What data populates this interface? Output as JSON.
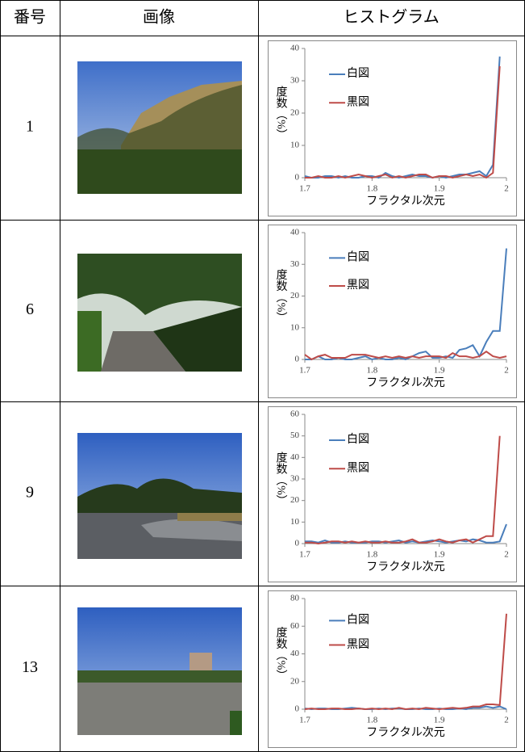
{
  "table": {
    "header": [
      "番号",
      "画像",
      "ヒストグラム"
    ],
    "rows": [
      {
        "number": 1,
        "chart": {
          "type": "line",
          "xlabel": "フラクタル次元",
          "ylabel": "度数（%）",
          "x": [
            1.7,
            1.71,
            1.72,
            1.73,
            1.74,
            1.75,
            1.76,
            1.77,
            1.78,
            1.79,
            1.8,
            1.81,
            1.82,
            1.83,
            1.84,
            1.85,
            1.86,
            1.87,
            1.88,
            1.89,
            1.9,
            1.91,
            1.92,
            1.93,
            1.94,
            1.95,
            1.96,
            1.97,
            1.98,
            1.99
          ],
          "series": [
            {
              "name": "白図",
              "color": "#4a7ebb",
              "values": [
                0.5,
                0,
                0,
                0.5,
                0.5,
                0,
                0.5,
                0,
                0,
                0.5,
                0.5,
                0,
                1.5,
                0.5,
                0,
                0.5,
                1,
                0.5,
                0.5,
                0,
                0.5,
                0,
                0.5,
                1,
                1,
                1.5,
                2,
                0.5,
                4,
                37.5
              ]
            },
            {
              "name": "黒図",
              "color": "#be4b48",
              "values": [
                0,
                0,
                0.5,
                0,
                0,
                0.5,
                0,
                0.5,
                1,
                0.5,
                0,
                0.5,
                1,
                0,
                0.5,
                0,
                0.5,
                1,
                1,
                0,
                0.5,
                0.5,
                0,
                0.5,
                1,
                0.5,
                1,
                0,
                1.5,
                34.5
              ]
            }
          ],
          "xlim": [
            1.7,
            2.0
          ],
          "xticks": [
            1.7,
            1.8,
            1.9,
            2
          ],
          "ylim": [
            0,
            40
          ],
          "yticks": [
            0,
            10,
            20,
            30,
            40
          ]
        }
      },
      {
        "number": 6,
        "chart": {
          "type": "line",
          "xlabel": "フラクタル次元",
          "ylabel": "度数（%）",
          "x": [
            1.7,
            1.71,
            1.72,
            1.73,
            1.74,
            1.75,
            1.76,
            1.77,
            1.78,
            1.79,
            1.8,
            1.81,
            1.82,
            1.83,
            1.84,
            1.85,
            1.86,
            1.87,
            1.88,
            1.89,
            1.9,
            1.91,
            1.92,
            1.93,
            1.94,
            1.95,
            1.96,
            1.97,
            1.98,
            1.99,
            2
          ],
          "series": [
            {
              "name": "白図",
              "color": "#4a7ebb",
              "values": [
                0,
                0,
                1,
                0,
                0,
                0.5,
                0,
                0,
                0.5,
                1,
                0,
                0.5,
                0,
                0,
                0.5,
                0,
                1,
                2,
                2.5,
                0.5,
                0.5,
                1,
                0.5,
                3,
                3.5,
                4.5,
                1,
                5.5,
                9,
                9,
                35
              ]
            },
            {
              "name": "黒図",
              "color": "#be4b48",
              "values": [
                1.5,
                0,
                1,
                1.5,
                0.5,
                0.5,
                0.5,
                1.5,
                1.5,
                1.5,
                1,
                0.5,
                1,
                0.5,
                1,
                0.5,
                1,
                0.5,
                1,
                1,
                1,
                0.5,
                2,
                1,
                1,
                0.5,
                1,
                2.5,
                1,
                0.5,
                1
              ]
            }
          ],
          "xlim": [
            1.7,
            2.0
          ],
          "xticks": [
            1.7,
            1.8,
            1.9,
            2
          ],
          "ylim": [
            0,
            40
          ],
          "yticks": [
            0,
            10,
            20,
            30,
            40
          ]
        }
      },
      {
        "number": 9,
        "chart": {
          "type": "line",
          "xlabel": "フラクタル次元",
          "ylabel": "度数（%）",
          "x": [
            1.7,
            1.71,
            1.72,
            1.73,
            1.74,
            1.75,
            1.76,
            1.77,
            1.78,
            1.79,
            1.8,
            1.81,
            1.82,
            1.83,
            1.84,
            1.85,
            1.86,
            1.87,
            1.88,
            1.89,
            1.9,
            1.91,
            1.92,
            1.93,
            1.94,
            1.95,
            1.96,
            1.97,
            1.98,
            1.99,
            2
          ],
          "series": [
            {
              "name": "白図",
              "color": "#4a7ebb",
              "values": [
                1,
                1,
                0.5,
                1.5,
                0.5,
                0.5,
                1,
                0.5,
                0.5,
                0.5,
                1,
                1,
                0.5,
                1,
                1.5,
                0.5,
                1,
                0.5,
                1,
                1.5,
                1,
                0.5,
                1,
                1.5,
                1,
                2,
                1.5,
                0.5,
                0.5,
                1,
                9
              ]
            },
            {
              "name": "黒図",
              "color": "#be4b48",
              "values": [
                0.5,
                0.5,
                0,
                0.5,
                1,
                1,
                0.5,
                1,
                0.5,
                1,
                0.5,
                0.5,
                1,
                0.5,
                0.5,
                1,
                2,
                0.5,
                0.5,
                1,
                2,
                1,
                0.5,
                1.5,
                2,
                0.5,
                2,
                3.5,
                3.5,
                50,
                null
              ]
            }
          ],
          "xlim": [
            1.7,
            2.0
          ],
          "xticks": [
            1.7,
            1.8,
            1.9,
            2
          ],
          "ylim": [
            0,
            60
          ],
          "yticks": [
            0,
            10,
            20,
            30,
            40,
            50,
            60
          ]
        }
      },
      {
        "number": 13,
        "chart": {
          "type": "line",
          "xlabel": "フラクタル次元",
          "ylabel": "度数（%）",
          "x": [
            1.7,
            1.71,
            1.72,
            1.73,
            1.74,
            1.75,
            1.76,
            1.77,
            1.78,
            1.79,
            1.8,
            1.81,
            1.82,
            1.83,
            1.84,
            1.85,
            1.86,
            1.87,
            1.88,
            1.89,
            1.9,
            1.91,
            1.92,
            1.93,
            1.94,
            1.95,
            1.96,
            1.97,
            1.98,
            1.99,
            2
          ],
          "series": [
            {
              "name": "白図",
              "color": "#4a7ebb",
              "values": [
                0.5,
                0,
                0.5,
                0.5,
                0,
                0,
                0.5,
                1,
                0.5,
                0,
                0,
                0.5,
                0,
                0.5,
                0.5,
                0,
                0,
                0.5,
                0,
                0,
                0.5,
                0,
                0,
                0.5,
                0,
                1,
                1,
                2,
                1,
                2,
                0
              ]
            },
            {
              "name": "黒図",
              "color": "#be4b48",
              "values": [
                0,
                0.5,
                0,
                0,
                0.5,
                0.5,
                0,
                0,
                0.5,
                0,
                0.5,
                0,
                0.5,
                0,
                1,
                0,
                0.5,
                0,
                1,
                0.5,
                0,
                0.5,
                1,
                0.5,
                1,
                2,
                2,
                3.5,
                3.5,
                3,
                69
              ]
            }
          ],
          "xlim": [
            1.7,
            2.0
          ],
          "xticks": [
            1.7,
            1.8,
            1.9,
            2
          ],
          "ylim": [
            0,
            80
          ],
          "yticks": [
            0,
            20,
            40,
            60,
            80
          ]
        }
      }
    ]
  }
}
